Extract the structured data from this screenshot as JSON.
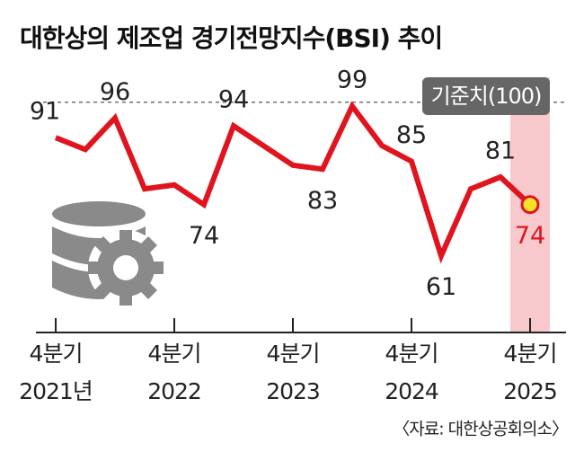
{
  "chart_data": {
    "type": "line",
    "title": "대한상의 제조업 경기전망지수(BSI) 추이",
    "categories": [
      "4분기\n2021년",
      null,
      null,
      null,
      "4분기\n2022",
      null,
      null,
      null,
      "4분기\n2023",
      null,
      null,
      null,
      "4분기\n2024",
      null,
      null,
      null,
      "4분기\n2025"
    ],
    "values": [
      91,
      88,
      96,
      78,
      79,
      74,
      94,
      89,
      84,
      83,
      99,
      89,
      85,
      61,
      78,
      81,
      74
    ],
    "labeled": [
      true,
      false,
      true,
      false,
      false,
      true,
      true,
      false,
      false,
      true,
      true,
      false,
      true,
      true,
      false,
      true,
      true
    ],
    "color": "#e0141e",
    "highlight_last": true,
    "ylim": [
      55,
      102
    ],
    "reference": {
      "value": 100,
      "label": "기준치(100)"
    }
  },
  "source": "〈자료: 대한상공회의소〉"
}
